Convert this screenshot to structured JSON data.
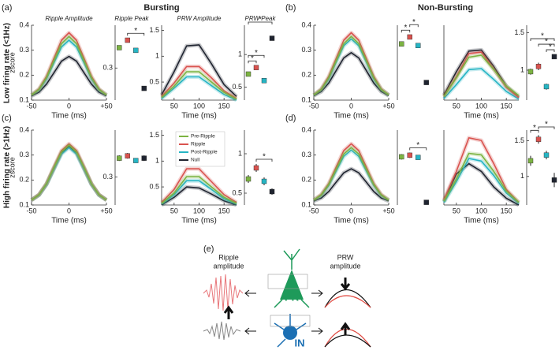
{
  "figure": {
    "panel_labels": [
      "(a)",
      "(b)",
      "(c)",
      "(d)"
    ],
    "column_titles": [
      "Bursting",
      "Non-Bursting"
    ],
    "row_titles": [
      "Low firing rate (<1Hz)",
      "High firing rate (>1Hz)"
    ],
    "diagram": {
      "label": "(e)",
      "ripple_label": [
        "Ripple",
        "amplitude"
      ],
      "prw_label": [
        "PRW",
        "amplitude"
      ],
      "pr": "PR",
      "in": "IN"
    }
  },
  "chart_data": [
    {
      "type": "line",
      "title": "Ripple Amplitude",
      "ylabel": "zscore",
      "xlabel": "Time (ms)",
      "x": [
        -50,
        -40,
        -30,
        -20,
        -10,
        0,
        10,
        20,
        30,
        40,
        50
      ],
      "xlim": [
        -50,
        50
      ],
      "xticks": [
        -50,
        0,
        {
          "value": 50,
          "label": "+50"
        }
      ],
      "ylim": [
        0.1,
        0.4
      ],
      "yticks": [
        0.1,
        0.2,
        0.3,
        0.4
      ],
      "series": [
        {
          "color": "#7cb342",
          "values": [
            0.121,
            0.143,
            0.19,
            0.259,
            0.326,
            0.355,
            0.326,
            0.259,
            0.19,
            0.143,
            0.121
          ]
        },
        {
          "color": "#d9534f",
          "values": [
            0.121,
            0.145,
            0.195,
            0.268,
            0.34,
            0.37,
            0.34,
            0.268,
            0.195,
            0.145,
            0.121
          ]
        },
        {
          "color": "#26b5c4",
          "values": [
            0.12,
            0.141,
            0.185,
            0.25,
            0.313,
            0.34,
            0.313,
            0.25,
            0.185,
            0.141,
            0.12
          ]
        },
        {
          "color": "#1f2430",
          "values": [
            0.117,
            0.132,
            0.164,
            0.21,
            0.256,
            0.275,
            0.256,
            0.21,
            0.164,
            0.132,
            0.117
          ]
        }
      ]
    },
    {
      "type": "errorbar",
      "title": "Ripple Peak",
      "ylim": [
        0.24,
        0.38
      ],
      "yticks": [
        0.3
      ],
      "colors": [
        "#7cb342",
        "#d9534f",
        "#26b5c4",
        "#1f2430"
      ],
      "values": [
        0.338,
        0.352,
        0.333,
        0.262
      ],
      "errors": [
        0.004,
        0.004,
        0.004,
        0.003
      ],
      "brackets": [
        {
          "from": 1,
          "to": 3,
          "label": "*"
        }
      ]
    },
    {
      "type": "line",
      "title": "PRW Amplitude",
      "xlabel": "Time (ms)",
      "x": [
        25,
        50,
        75,
        100,
        125,
        150,
        175
      ],
      "xlim": [
        25,
        175
      ],
      "xticks": [
        50,
        100,
        150
      ],
      "ylim": [
        0.15,
        1.6
      ],
      "yticks": [
        0.5,
        1,
        1.5
      ],
      "series": [
        {
          "color": "#7cb342",
          "values": [
            0.2,
            0.42,
            0.7,
            0.7,
            0.5,
            0.3,
            0.17
          ]
        },
        {
          "color": "#d9534f",
          "values": [
            0.22,
            0.48,
            0.8,
            0.8,
            0.58,
            0.33,
            0.18
          ]
        },
        {
          "color": "#26b5c4",
          "values": [
            0.18,
            0.38,
            0.6,
            0.6,
            0.43,
            0.26,
            0.15
          ]
        },
        {
          "color": "#1f2430",
          "values": [
            0.25,
            0.7,
            1.2,
            1.22,
            0.85,
            0.45,
            0.22
          ]
        }
      ]
    },
    {
      "type": "errorbar",
      "title": "PRW Peak",
      "ylim": [
        0.3,
        1.45
      ],
      "yticks": [
        0.5,
        1
      ],
      "colors": [
        "#7cb342",
        "#d9534f",
        "#26b5c4",
        "#1f2430"
      ],
      "values": [
        0.7,
        0.8,
        0.6,
        1.25
      ],
      "errors": [
        0.03,
        0.03,
        0.03,
        0.02
      ],
      "brackets": [
        {
          "from": 0,
          "to": 1,
          "label": "*"
        },
        {
          "from": 0,
          "to": 2,
          "label": "*"
        },
        {
          "from": 0,
          "to": 3,
          "label": "*"
        }
      ]
    },
    {
      "type": "line",
      "xlabel": "Time (ms)",
      "x": [
        -50,
        -40,
        -30,
        -20,
        -10,
        0,
        10,
        20,
        30,
        40,
        50
      ],
      "xlim": [
        -50,
        50
      ],
      "xticks": [
        -50,
        0,
        {
          "value": 50,
          "label": "+50"
        }
      ],
      "ylim": [
        0.1,
        0.4
      ],
      "yticks": [
        0.1,
        0.2,
        0.3,
        0.4
      ],
      "series": [
        {
          "color": "#7cb342",
          "values": [
            0.121,
            0.143,
            0.19,
            0.259,
            0.326,
            0.355,
            0.326,
            0.259,
            0.19,
            0.143,
            0.121
          ]
        },
        {
          "color": "#d9534f",
          "values": [
            0.121,
            0.145,
            0.195,
            0.268,
            0.34,
            0.37,
            0.34,
            0.268,
            0.195,
            0.145,
            0.121
          ]
        },
        {
          "color": "#26b5c4",
          "values": [
            0.12,
            0.142,
            0.186,
            0.253,
            0.318,
            0.345,
            0.318,
            0.253,
            0.186,
            0.142,
            0.12
          ]
        },
        {
          "color": "#1f2430",
          "values": [
            0.118,
            0.134,
            0.169,
            0.219,
            0.269,
            0.29,
            0.269,
            0.219,
            0.169,
            0.134,
            0.118
          ]
        }
      ]
    },
    {
      "type": "errorbar",
      "ylim": [
        0.24,
        0.38
      ],
      "colors": [
        "#7cb342",
        "#d9534f",
        "#26b5c4",
        "#1f2430"
      ],
      "values": [
        0.345,
        0.358,
        0.342,
        0.273
      ],
      "errors": [
        0.003,
        0.004,
        0.003,
        0.002
      ],
      "brackets": [
        {
          "from": 0,
          "to": 1,
          "label": "*"
        },
        {
          "from": 1,
          "to": 2,
          "label": "*"
        }
      ]
    },
    {
      "type": "line",
      "xlabel": "Time (ms)",
      "x": [
        25,
        50,
        75,
        100,
        125,
        150,
        175
      ],
      "xlim": [
        25,
        175
      ],
      "xticks": [
        50,
        100,
        150
      ],
      "ylim": [
        0.15,
        1.6
      ],
      "series": [
        {
          "color": "#7cb342",
          "values": [
            0.22,
            0.58,
            0.98,
            1.02,
            0.74,
            0.42,
            0.24
          ]
        },
        {
          "color": "#d9534f",
          "values": [
            0.22,
            0.6,
            1.05,
            1.08,
            0.75,
            0.4,
            0.2
          ]
        },
        {
          "color": "#26b5c4",
          "values": [
            0.18,
            0.45,
            0.74,
            0.76,
            0.55,
            0.32,
            0.17
          ]
        },
        {
          "color": "#1f2430",
          "values": [
            0.25,
            0.7,
            1.1,
            1.12,
            0.8,
            0.42,
            0.2
          ]
        }
      ]
    },
    {
      "type": "errorbar",
      "ylim": [
        0.6,
        1.6
      ],
      "yticks": [
        1,
        1.5
      ],
      "colors": [
        "#7cb342",
        "#d9534f",
        "#26b5c4",
        "#1f2430"
      ],
      "values": [
        0.98,
        1.05,
        0.78,
        1.18
      ],
      "errors": [
        0.04,
        0.05,
        0.04,
        0.03
      ],
      "brackets": [
        {
          "from": 2,
          "to": 3,
          "label": "*"
        },
        {
          "from": 1,
          "to": 3,
          "label": "*"
        },
        {
          "from": 0,
          "to": 3,
          "label": "*"
        }
      ]
    },
    {
      "type": "line",
      "ylabel": "zscore",
      "xlabel": "Time (ms)",
      "x": [
        -50,
        -40,
        -30,
        -20,
        -10,
        0,
        10,
        20,
        30,
        40,
        50
      ],
      "xlim": [
        -50,
        50
      ],
      "xticks": [
        -50,
        0,
        {
          "value": 50,
          "label": "+50"
        }
      ],
      "ylim": [
        0.1,
        0.4
      ],
      "yticks": [
        0.1,
        0.2,
        0.3,
        0.4
      ],
      "series": [
        {
          "color": "#7cb342",
          "values": [
            0.12,
            0.141,
            0.185,
            0.25,
            0.313,
            0.34,
            0.313,
            0.25,
            0.185,
            0.141,
            0.12
          ]
        },
        {
          "color": "#d9534f",
          "values": [
            0.12,
            0.142,
            0.186,
            0.253,
            0.318,
            0.345,
            0.318,
            0.253,
            0.186,
            0.142,
            0.12
          ]
        },
        {
          "color": "#26b5c4",
          "values": [
            0.12,
            0.14,
            0.182,
            0.244,
            0.304,
            0.33,
            0.304,
            0.244,
            0.182,
            0.14,
            0.12
          ]
        },
        {
          "color": "#1f2430",
          "values": [
            0.12,
            0.14,
            0.183,
            0.247,
            0.309,
            0.335,
            0.309,
            0.247,
            0.183,
            0.14,
            0.12
          ]
        }
      ]
    },
    {
      "type": "errorbar",
      "ylim": [
        0.24,
        0.4
      ],
      "yticks": [
        0.3
      ],
      "colors": [
        "#7cb342",
        "#d9534f",
        "#26b5c4",
        "#1f2430"
      ],
      "values": [
        0.34,
        0.345,
        0.335,
        0.34
      ],
      "errors": [
        0.006,
        0.006,
        0.005,
        0.006
      ]
    },
    {
      "type": "line",
      "xlabel": "Time (ms)",
      "x": [
        25,
        50,
        75,
        100,
        125,
        150,
        175
      ],
      "xlim": [
        25,
        175
      ],
      "xticks": [
        50,
        100,
        150
      ],
      "ylim": [
        0.15,
        1.6
      ],
      "yticks": [
        0.5,
        1,
        1.5
      ],
      "series": [
        {
          "name": "Pre-Ripple",
          "color": "#7cb342",
          "values": [
            0.18,
            0.38,
            0.7,
            0.7,
            0.5,
            0.3,
            0.18
          ]
        },
        {
          "name": "Ripple",
          "color": "#d9534f",
          "values": [
            0.2,
            0.45,
            0.85,
            0.85,
            0.6,
            0.35,
            0.2
          ]
        },
        {
          "name": "Post-Ripple",
          "color": "#26b5c4",
          "values": [
            0.17,
            0.35,
            0.62,
            0.62,
            0.45,
            0.27,
            0.17
          ]
        },
        {
          "name": "Null",
          "color": "#1f2430",
          "values": [
            0.15,
            0.3,
            0.5,
            0.48,
            0.36,
            0.23,
            0.15
          ]
        }
      ]
    },
    {
      "type": "errorbar",
      "ylim": [
        0.35,
        1.3
      ],
      "yticks": [
        0.5,
        1
      ],
      "colors": [
        "#7cb342",
        "#d9534f",
        "#26b5c4",
        "#1f2430"
      ],
      "values": [
        0.68,
        0.82,
        0.65,
        0.52
      ],
      "errors": [
        0.05,
        0.05,
        0.05,
        0.04
      ],
      "brackets": [
        {
          "from": 1,
          "to": 3,
          "label": "*"
        }
      ]
    },
    {
      "type": "line",
      "xlabel": "Time (ms)",
      "x": [
        -50,
        -40,
        -30,
        -20,
        -10,
        0,
        10,
        20,
        30,
        40,
        50
      ],
      "xlim": [
        -50,
        50
      ],
      "xticks": [
        -50,
        0,
        {
          "value": 50,
          "label": "+50"
        }
      ],
      "ylim": [
        0.1,
        0.4
      ],
      "yticks": [
        0.1,
        0.2,
        0.3,
        0.4
      ],
      "series": [
        {
          "color": "#7cb342",
          "values": [
            0.12,
            0.14,
            0.182,
            0.244,
            0.304,
            0.33,
            0.304,
            0.244,
            0.182,
            0.14,
            0.12
          ]
        },
        {
          "color": "#d9534f",
          "values": [
            0.12,
            0.142,
            0.186,
            0.253,
            0.318,
            0.345,
            0.318,
            0.253,
            0.186,
            0.142,
            0.12
          ]
        },
        {
          "color": "#26b5c4",
          "values": [
            0.119,
            0.138,
            0.178,
            0.237,
            0.295,
            0.32,
            0.295,
            0.237,
            0.178,
            0.138,
            0.119
          ]
        },
        {
          "color": "#1f2430",
          "values": [
            0.116,
            0.128,
            0.154,
            0.192,
            0.229,
            0.245,
            0.229,
            0.192,
            0.154,
            0.128,
            0.116
          ]
        }
      ]
    },
    {
      "type": "errorbar",
      "ylim": [
        0.24,
        0.38
      ],
      "colors": [
        "#7cb342",
        "#d9534f",
        "#26b5c4",
        "#1f2430"
      ],
      "values": [
        0.33,
        0.333,
        0.329,
        0.245
      ],
      "errors": [
        0.005,
        0.005,
        0.004,
        0.002
      ],
      "brackets": [
        {
          "from": 1,
          "to": 3,
          "label": "*"
        }
      ]
    },
    {
      "type": "line",
      "xlabel": "Time (ms)",
      "x": [
        25,
        50,
        75,
        100,
        125,
        150,
        175
      ],
      "xlim": [
        25,
        175
      ],
      "xticks": [
        50,
        100,
        150
      ],
      "ylim": [
        0.15,
        1.6
      ],
      "series": [
        {
          "color": "#7cb342",
          "values": [
            0.22,
            0.65,
            1.15,
            1.12,
            0.8,
            0.42,
            0.2
          ]
        },
        {
          "color": "#d9534f",
          "values": [
            0.25,
            0.8,
            1.45,
            1.4,
            0.95,
            0.45,
            0.2
          ]
        },
        {
          "color": "#26b5c4",
          "values": [
            0.2,
            0.6,
            1.05,
            1.0,
            0.72,
            0.38,
            0.18
          ]
        },
        {
          "color": "#1f2430",
          "values": [
            0.22,
            0.75,
            0.95,
            0.8,
            0.5,
            0.28,
            0.15
          ]
        }
      ]
    },
    {
      "type": "errorbar",
      "ylim": [
        0.6,
        1.65
      ],
      "yticks": [
        1,
        1.5
      ],
      "colors": [
        "#7cb342",
        "#d9534f",
        "#26b5c4",
        "#1f2430"
      ],
      "values": [
        1.22,
        1.52,
        1.3,
        0.95
      ],
      "errors": [
        0.07,
        0.06,
        0.06,
        0.1
      ],
      "brackets": [
        {
          "from": 0,
          "to": 1,
          "label": "*"
        },
        {
          "from": 1,
          "to": 3,
          "label": "*"
        }
      ]
    }
  ]
}
